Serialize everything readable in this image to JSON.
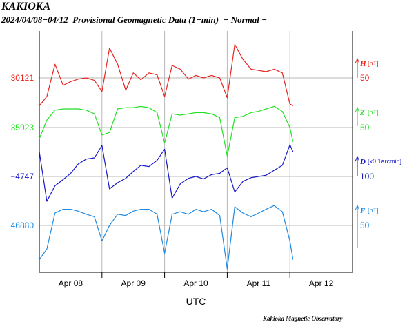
{
  "header": {
    "title": "KAKIOKA",
    "subtitle": "2024/04/08−04/12  Provisional Geomagnetic Data (1−min)  − Normal −"
  },
  "footer": {
    "credit": "Kakioka Magnetic Observatory"
  },
  "chart_data": {
    "type": "line",
    "xlabel": "UTC",
    "x_ticks": [
      "Apr 08",
      "Apr 09",
      "Apr 10",
      "Apr 11",
      "Apr 12"
    ],
    "x_range_days": [
      0,
      5
    ],
    "grid": true,
    "series": [
      {
        "name": "H",
        "unit": "[nT]",
        "color": "#e8231e",
        "left_label": "30121",
        "right_scale_label": "50",
        "day_values": [
          0,
          0.12,
          0.25,
          0.38,
          0.5,
          0.62,
          0.75,
          0.88,
          1,
          1.12,
          1.25,
          1.38,
          1.5,
          1.62,
          1.75,
          1.88,
          2,
          2.12,
          2.25,
          2.38,
          2.5,
          2.62,
          2.75,
          2.88,
          3,
          3.12,
          3.25,
          3.38,
          3.5,
          3.62,
          3.75,
          3.88,
          4,
          4.05
        ],
        "values": [
          -45,
          -30,
          22,
          -12,
          -6,
          -2,
          0,
          -4,
          -22,
          48,
          22,
          -20,
          8,
          -3,
          8,
          5,
          -30,
          20,
          14,
          -2,
          4,
          0,
          4,
          0,
          -32,
          54,
          30,
          14,
          12,
          10,
          14,
          8,
          -42,
          -45
        ]
      },
      {
        "name": "Z",
        "unit": "[nT]",
        "color": "#22e022",
        "left_label": "35923",
        "right_scale_label": "50",
        "day_values": [
          0,
          0.12,
          0.25,
          0.38,
          0.5,
          0.62,
          0.75,
          0.88,
          1,
          1.12,
          1.25,
          1.38,
          1.5,
          1.62,
          1.75,
          1.88,
          2,
          2.12,
          2.25,
          2.38,
          2.5,
          2.62,
          2.75,
          2.88,
          3,
          3.12,
          3.25,
          3.38,
          3.5,
          3.62,
          3.75,
          3.88,
          4,
          4.05
        ],
        "values": [
          -18,
          12,
          28,
          30,
          30,
          30,
          28,
          22,
          -12,
          -8,
          30,
          32,
          32,
          34,
          32,
          24,
          -25,
          22,
          20,
          22,
          24,
          24,
          22,
          16,
          -46,
          16,
          18,
          24,
          26,
          30,
          34,
          26,
          0,
          -23
        ]
      },
      {
        "name": "D",
        "unit": "[x0.1arcmin]",
        "color": "#1717c4",
        "left_label": "−4747",
        "right_scale_label": "100",
        "day_values": [
          0,
          0.12,
          0.25,
          0.38,
          0.5,
          0.62,
          0.75,
          0.88,
          1,
          1.12,
          1.25,
          1.38,
          1.5,
          1.62,
          1.75,
          1.88,
          2,
          2.12,
          2.25,
          2.38,
          2.5,
          2.62,
          2.75,
          2.88,
          3,
          3.12,
          3.25,
          3.38,
          3.5,
          3.62,
          3.75,
          3.88,
          4,
          4.05
        ],
        "values": [
          40,
          -40,
          -15,
          -5,
          5,
          20,
          28,
          30,
          50,
          -20,
          -10,
          -3,
          8,
          18,
          16,
          26,
          44,
          -35,
          -12,
          -3,
          0,
          -4,
          3,
          5,
          14,
          -25,
          -8,
          -2,
          0,
          2,
          10,
          18,
          51,
          40
        ]
      },
      {
        "name": "F",
        "unit": "[nT]",
        "color": "#1f8ae0",
        "left_label": "46880",
        "right_scale_label": "50",
        "day_values": [
          0,
          0.12,
          0.25,
          0.38,
          0.5,
          0.62,
          0.75,
          0.88,
          1,
          1.12,
          1.25,
          1.38,
          1.5,
          1.62,
          1.75,
          1.88,
          2,
          2.12,
          2.25,
          2.38,
          2.5,
          2.62,
          2.75,
          2.88,
          3,
          3.12,
          3.25,
          3.38,
          3.5,
          3.62,
          3.75,
          3.88,
          4,
          4.05
        ],
        "values": [
          -55,
          -38,
          20,
          26,
          26,
          23,
          18,
          14,
          -25,
          0,
          18,
          16,
          23,
          26,
          26,
          18,
          -45,
          18,
          22,
          18,
          26,
          22,
          26,
          16,
          -70,
          30,
          20,
          14,
          20,
          26,
          32,
          22,
          -25,
          -55
        ]
      }
    ]
  }
}
